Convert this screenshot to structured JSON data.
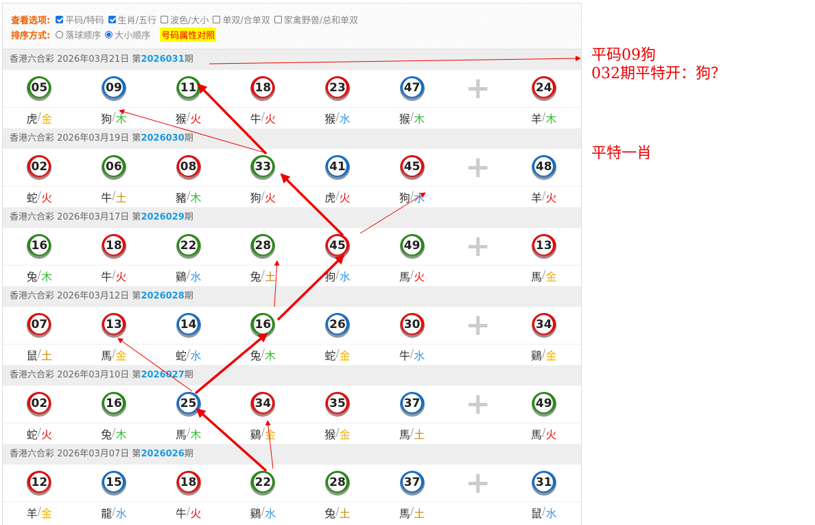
{
  "options": {
    "view_label": "查看选项:",
    "view": [
      {
        "label": "平码/特码",
        "checked": true
      },
      {
        "label": "生肖/五行",
        "checked": true
      },
      {
        "label": "波色/大小",
        "checked": false
      },
      {
        "label": "单双/合单双",
        "checked": false
      },
      {
        "label": "家禽野兽/总和单双",
        "checked": false
      }
    ],
    "sort_label": "排序方式:",
    "sort": [
      {
        "label": "落球顺序",
        "selected": false
      },
      {
        "label": "大小顺序",
        "selected": true
      }
    ],
    "attr_link": "号码属性对照"
  },
  "colors": {
    "red": "#e01010",
    "blue": "#1a6fc4",
    "green": "#2b8a1b",
    "金": "#f0b400",
    "木": "#33bb33",
    "火": "#ee1111",
    "水": "#3399ee",
    "土": "#c88a00"
  },
  "periods": [
    {
      "title": "香港六合彩 2026年03月21日 第",
      "issue": "2026031",
      "suffix": "期",
      "balls": [
        [
          "05",
          "green",
          "虎",
          "金"
        ],
        [
          "09",
          "blue",
          "狗",
          "木"
        ],
        [
          "11",
          "green",
          "猴",
          "火"
        ],
        [
          "18",
          "red",
          "牛",
          "火"
        ],
        [
          "23",
          "red",
          "猴",
          "水"
        ],
        [
          "47",
          "blue",
          "猴",
          "木"
        ],
        [
          "24",
          "red",
          "羊",
          "木"
        ]
      ]
    },
    {
      "title": "香港六合彩 2026年03月19日 第",
      "issue": "2026030",
      "suffix": "期",
      "balls": [
        [
          "02",
          "red",
          "蛇",
          "火"
        ],
        [
          "06",
          "green",
          "牛",
          "土"
        ],
        [
          "08",
          "red",
          "豬",
          "木"
        ],
        [
          "33",
          "green",
          "狗",
          "火"
        ],
        [
          "41",
          "blue",
          "虎",
          "火"
        ],
        [
          "45",
          "red",
          "狗",
          "水"
        ],
        [
          "48",
          "blue",
          "羊",
          "火"
        ]
      ]
    },
    {
      "title": "香港六合彩 2026年03月17日 第",
      "issue": "2026029",
      "suffix": "期",
      "balls": [
        [
          "16",
          "green",
          "兔",
          "木"
        ],
        [
          "18",
          "red",
          "牛",
          "火"
        ],
        [
          "22",
          "green",
          "鷄",
          "水"
        ],
        [
          "28",
          "green",
          "兔",
          "土"
        ],
        [
          "45",
          "red",
          "狗",
          "水"
        ],
        [
          "49",
          "green",
          "馬",
          "火"
        ],
        [
          "13",
          "red",
          "馬",
          "金"
        ]
      ]
    },
    {
      "title": "香港六合彩 2026年03月12日 第",
      "issue": "2026028",
      "suffix": "期",
      "balls": [
        [
          "07",
          "red",
          "鼠",
          "土"
        ],
        [
          "13",
          "red",
          "馬",
          "金"
        ],
        [
          "14",
          "blue",
          "蛇",
          "水"
        ],
        [
          "16",
          "green",
          "兔",
          "木"
        ],
        [
          "26",
          "blue",
          "蛇",
          "金"
        ],
        [
          "30",
          "red",
          "牛",
          "水"
        ],
        [
          "34",
          "red",
          "鷄",
          "金"
        ]
      ]
    },
    {
      "title": "香港六合彩 2026年03月10日 第",
      "issue": "2026027",
      "suffix": "期",
      "balls": [
        [
          "02",
          "red",
          "蛇",
          "火"
        ],
        [
          "16",
          "green",
          "兔",
          "木"
        ],
        [
          "25",
          "blue",
          "馬",
          "木"
        ],
        [
          "34",
          "red",
          "鷄",
          "金"
        ],
        [
          "35",
          "red",
          "猴",
          "金"
        ],
        [
          "37",
          "blue",
          "馬",
          "土"
        ],
        [
          "49",
          "green",
          "馬",
          "火"
        ]
      ]
    },
    {
      "title": "香港六合彩 2026年03月07日 第",
      "issue": "2026026",
      "suffix": "期",
      "balls": [
        [
          "12",
          "red",
          "羊",
          "金"
        ],
        [
          "15",
          "blue",
          "龍",
          "水"
        ],
        [
          "18",
          "red",
          "牛",
          "火"
        ],
        [
          "22",
          "green",
          "鷄",
          "水"
        ],
        [
          "28",
          "green",
          "兔",
          "土"
        ],
        [
          "37",
          "blue",
          "馬",
          "土"
        ],
        [
          "31",
          "blue",
          "鼠",
          "水"
        ]
      ]
    }
  ],
  "annotations": {
    "line1": "平码09狗",
    "line2": "032期平特开：狗？",
    "line3": "平特一肖"
  }
}
